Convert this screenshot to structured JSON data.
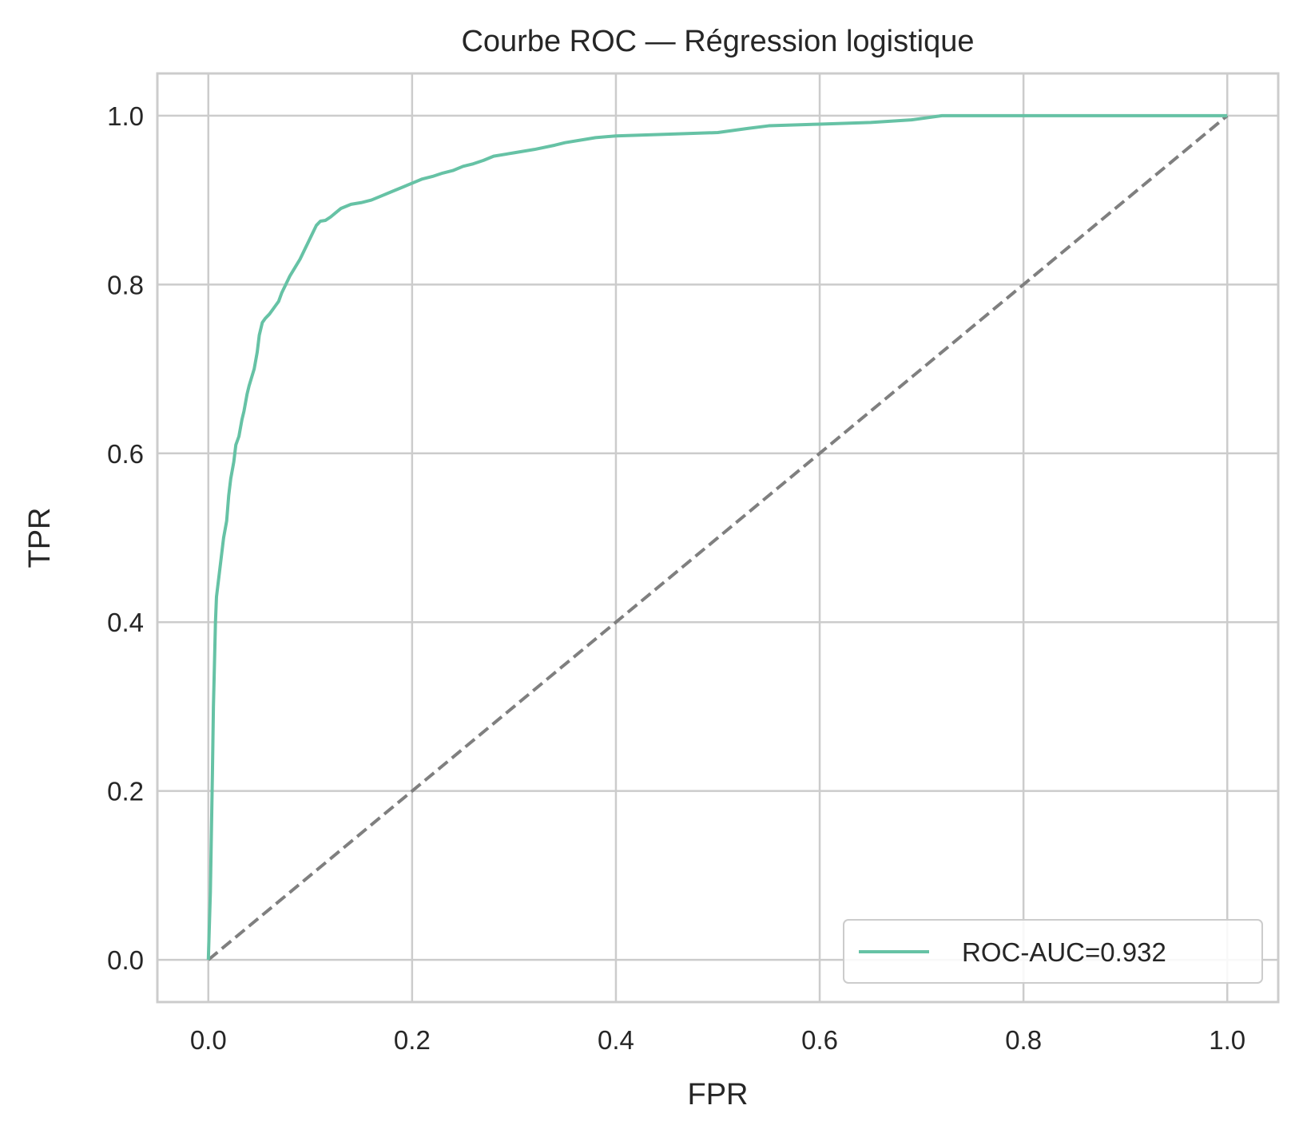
{
  "chart_data": {
    "type": "line",
    "title": "Courbe ROC — Régression logistique",
    "xlabel": "FPR",
    "ylabel": "TPR",
    "xlim": [
      -0.05,
      1.05
    ],
    "ylim": [
      -0.05,
      1.05
    ],
    "xticks": [
      "0.0",
      "0.2",
      "0.4",
      "0.6",
      "0.8",
      "1.0"
    ],
    "yticks": [
      "0.0",
      "0.2",
      "0.4",
      "0.6",
      "0.8",
      "1.0"
    ],
    "grid": true,
    "legend_position": "lower-right",
    "series": [
      {
        "name": "ROC-AUC=0.932",
        "color": "#66c2a5",
        "style": "solid",
        "x": [
          0.0,
          0.002,
          0.003,
          0.004,
          0.005,
          0.006,
          0.007,
          0.008,
          0.009,
          0.01,
          0.012,
          0.015,
          0.018,
          0.02,
          0.022,
          0.025,
          0.027,
          0.03,
          0.033,
          0.035,
          0.038,
          0.04,
          0.045,
          0.048,
          0.05,
          0.053,
          0.056,
          0.06,
          0.063,
          0.066,
          0.069,
          0.072,
          0.076,
          0.08,
          0.085,
          0.09,
          0.094,
          0.098,
          0.102,
          0.106,
          0.11,
          0.115,
          0.12,
          0.125,
          0.13,
          0.14,
          0.15,
          0.16,
          0.17,
          0.18,
          0.19,
          0.2,
          0.21,
          0.22,
          0.23,
          0.24,
          0.25,
          0.26,
          0.27,
          0.28,
          0.3,
          0.32,
          0.34,
          0.35,
          0.37,
          0.38,
          0.4,
          0.45,
          0.5,
          0.53,
          0.55,
          0.6,
          0.65,
          0.69,
          0.72,
          0.8,
          0.9,
          1.0
        ],
        "y": [
          0.0,
          0.08,
          0.15,
          0.22,
          0.3,
          0.35,
          0.4,
          0.43,
          0.44,
          0.45,
          0.47,
          0.5,
          0.52,
          0.55,
          0.57,
          0.59,
          0.61,
          0.62,
          0.64,
          0.65,
          0.67,
          0.68,
          0.7,
          0.72,
          0.74,
          0.755,
          0.76,
          0.765,
          0.77,
          0.775,
          0.78,
          0.79,
          0.8,
          0.81,
          0.82,
          0.83,
          0.84,
          0.85,
          0.86,
          0.87,
          0.875,
          0.876,
          0.88,
          0.885,
          0.89,
          0.895,
          0.897,
          0.9,
          0.905,
          0.91,
          0.915,
          0.92,
          0.925,
          0.928,
          0.932,
          0.935,
          0.94,
          0.943,
          0.947,
          0.952,
          0.956,
          0.96,
          0.965,
          0.968,
          0.972,
          0.974,
          0.976,
          0.978,
          0.98,
          0.985,
          0.988,
          0.99,
          0.992,
          0.995,
          1.0,
          1.0,
          1.0,
          1.0
        ]
      },
      {
        "name": "",
        "color": "#7f7f7f",
        "style": "dashed",
        "x": [
          0.0,
          1.0
        ],
        "y": [
          0.0,
          1.0
        ]
      }
    ]
  }
}
